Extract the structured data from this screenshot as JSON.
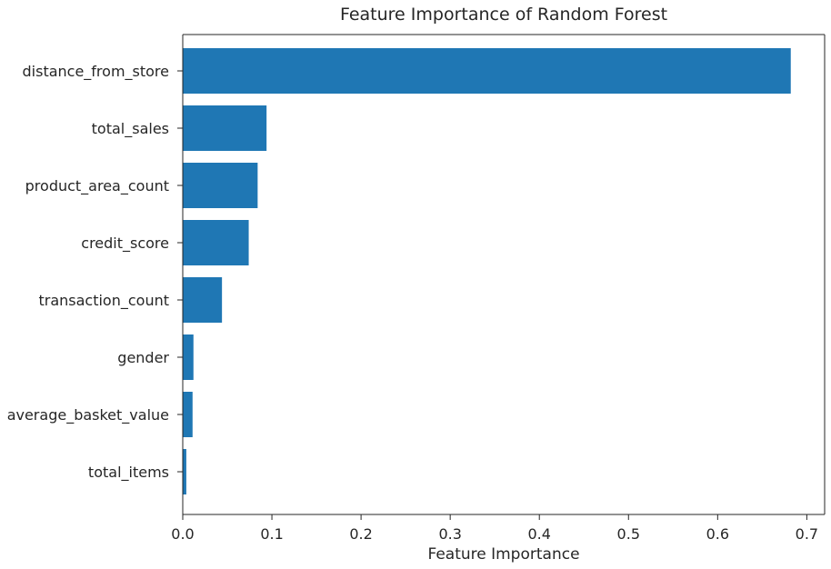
{
  "chart_data": {
    "type": "bar",
    "orientation": "horizontal",
    "title": "Feature Importance of Random Forest",
    "xlabel": "Feature Importance",
    "ylabel": "",
    "categories": [
      "distance_from_store",
      "total_sales",
      "product_area_count",
      "credit_score",
      "transaction_count",
      "gender",
      "average_basket_value",
      "total_items"
    ],
    "values": [
      0.682,
      0.094,
      0.084,
      0.074,
      0.044,
      0.012,
      0.011,
      0.004
    ],
    "xlim": [
      0,
      0.72
    ],
    "xticks": [
      "0.0",
      "0.1",
      "0.2",
      "0.3",
      "0.4",
      "0.5",
      "0.6",
      "0.7"
    ],
    "bar_color": "#1f77b4",
    "grid": false,
    "legend": "none"
  }
}
